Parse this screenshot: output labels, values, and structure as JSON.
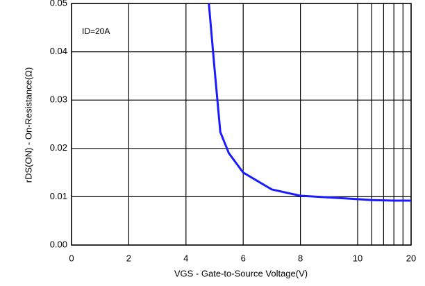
{
  "chart_data": {
    "type": "line",
    "annotation": "ID=20A",
    "x_label": "VGS - Gate-to-Source Voltage(V)",
    "y_label": "rDS(ON) - On-Resistance(Ω)",
    "x": [
      4.8,
      5.0,
      5.2,
      5.5,
      6,
      7,
      8,
      10,
      12,
      16,
      20
    ],
    "series": [
      {
        "color": "#1a1aff",
        "values": [
          0.05,
          0.0364,
          0.0234,
          0.019,
          0.015,
          0.0115,
          0.0102,
          0.0095,
          0.0093,
          0.0092,
          0.0092
        ]
      }
    ],
    "xlim": [
      0,
      20
    ],
    "xticks": [
      0,
      2,
      4,
      6,
      8,
      10,
      20
    ],
    "xgrid_minor": [
      12,
      14,
      16,
      18
    ],
    "ylim": [
      0,
      0.05
    ],
    "yticks": [
      {
        "value": 0,
        "label": "0.00"
      },
      {
        "value": 0.01,
        "label": "0.01"
      },
      {
        "value": 0.02,
        "label": "0.02"
      },
      {
        "value": 0.03,
        "label": "0.03"
      },
      {
        "value": 0.04,
        "label": "0.04"
      },
      {
        "value": 0.05,
        "label": "0.05"
      }
    ],
    "grid": true
  }
}
